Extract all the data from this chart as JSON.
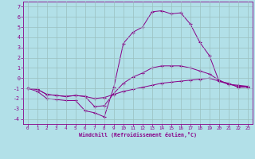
{
  "xlabel": "Windchill (Refroidissement éolien,°C)",
  "background_color": "#b2e0e8",
  "grid_color": "#aacccc",
  "line_color": "#880088",
  "xlim": [
    -0.5,
    23.5
  ],
  "ylim": [
    -4.5,
    7.5
  ],
  "yticks": [
    -4,
    -3,
    -2,
    -1,
    0,
    1,
    2,
    3,
    4,
    5,
    6,
    7
  ],
  "xticks": [
    0,
    1,
    2,
    3,
    4,
    5,
    6,
    7,
    8,
    9,
    10,
    11,
    12,
    13,
    14,
    15,
    16,
    17,
    18,
    19,
    20,
    21,
    22,
    23
  ],
  "hours": [
    0,
    1,
    2,
    3,
    4,
    5,
    6,
    7,
    8,
    9,
    10,
    11,
    12,
    13,
    14,
    15,
    16,
    17,
    18,
    19,
    20,
    21,
    22,
    23
  ],
  "line1": [
    -1.0,
    -1.3,
    -2.0,
    -2.1,
    -2.2,
    -2.2,
    -3.2,
    -3.4,
    -3.8,
    -0.9,
    3.4,
    4.5,
    5.0,
    6.5,
    6.6,
    6.3,
    6.4,
    5.3,
    3.5,
    2.2,
    -0.3,
    -0.5,
    -0.9,
    -0.9
  ],
  "line2": [
    -1.0,
    -1.1,
    -1.6,
    -1.7,
    -1.8,
    -1.7,
    -1.8,
    -2.8,
    -2.7,
    -1.5,
    -0.5,
    0.1,
    0.5,
    1.0,
    1.2,
    1.2,
    1.2,
    1.0,
    0.7,
    0.4,
    -0.2,
    -0.6,
    -0.7,
    -0.8
  ],
  "line3": [
    -1.0,
    -1.1,
    -1.6,
    -1.7,
    -1.8,
    -1.7,
    -1.8,
    -2.0,
    -1.9,
    -1.6,
    -1.3,
    -1.1,
    -0.9,
    -0.7,
    -0.5,
    -0.4,
    -0.3,
    -0.2,
    -0.1,
    0.0,
    -0.3,
    -0.6,
    -0.8,
    -0.8
  ]
}
